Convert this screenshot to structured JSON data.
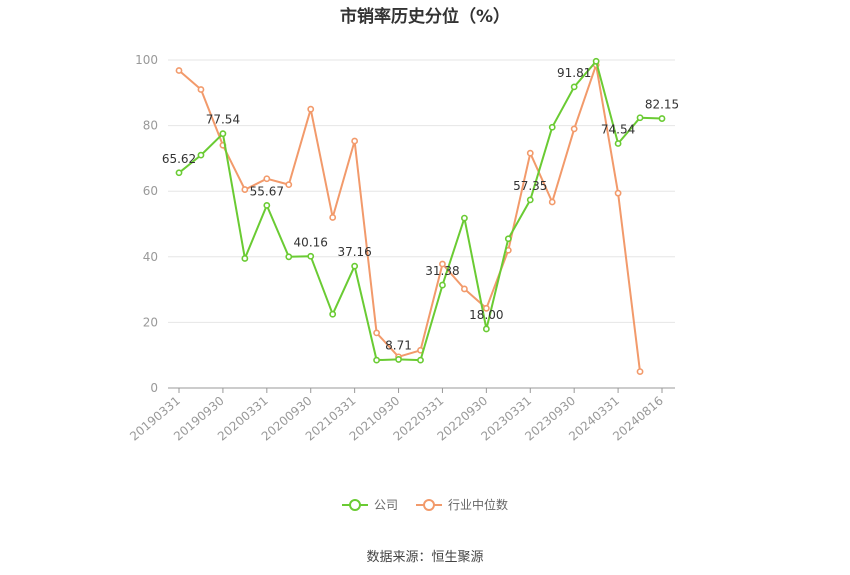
{
  "chart_data": {
    "type": "line",
    "title": "市销率历史分位（%）",
    "x": [
      "20190331",
      "20190630",
      "20190930",
      "20191231",
      "20200331",
      "20200630",
      "20200930",
      "20201231",
      "20210331",
      "20210630",
      "20210930",
      "20211231",
      "20220331",
      "20220630",
      "20220930",
      "20221231",
      "20230331",
      "20230630",
      "20230930",
      "20231231",
      "20240331",
      "20240630",
      "20240816"
    ],
    "x_tick_labels": [
      "20190331",
      "20190930",
      "20200331",
      "20200930",
      "20210331",
      "20210930",
      "20220331",
      "20220930",
      "20230331",
      "20230930",
      "20240331",
      "20240816"
    ],
    "ylim": [
      0,
      100
    ],
    "y_ticks": [
      "0",
      "20",
      "40",
      "60",
      "80",
      "100"
    ],
    "grid": true,
    "legend_position": "bottom",
    "series": [
      {
        "name": "公司",
        "color": "#6ACB33",
        "values": [
          65.62,
          71.0,
          77.54,
          39.5,
          55.67,
          40.0,
          40.16,
          22.5,
          37.16,
          8.5,
          8.71,
          8.5,
          31.38,
          51.8,
          18.0,
          45.5,
          57.35,
          79.5,
          91.81,
          99.6,
          74.54,
          82.4,
          82.15
        ],
        "labels": {
          "0": "65.62",
          "2": "77.54",
          "4": "55.67",
          "6": "40.16",
          "8": "37.16",
          "10": "8.71",
          "12": "31.38",
          "14": "18.00",
          "16": "57.35",
          "18": "91.81",
          "20": "74.54",
          "22": "82.15"
        }
      },
      {
        "name": "行业中位数",
        "color": "#F29A6B",
        "values": [
          96.8,
          91.0,
          74.0,
          60.5,
          63.8,
          62.0,
          85.0,
          52.0,
          75.3,
          16.8,
          9.5,
          11.5,
          37.8,
          30.2,
          24.3,
          42.0,
          71.6,
          56.7,
          79.0,
          98.5,
          59.4,
          5.0,
          null
        ]
      }
    ]
  },
  "legend": {
    "company": "公司",
    "industry": "行业中位数"
  },
  "source_text": "数据来源：恒生聚源"
}
